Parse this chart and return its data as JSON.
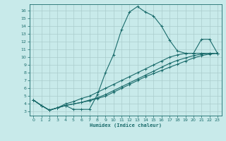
{
  "title": "",
  "xlabel": "Humidex (Indice chaleur)",
  "bg_color": "#c8eaea",
  "grid_color": "#aacccc",
  "line_color": "#1a6b6b",
  "xlim": [
    -0.5,
    23.5
  ],
  "ylim": [
    2.5,
    16.8
  ],
  "xticks": [
    0,
    1,
    2,
    3,
    4,
    5,
    6,
    7,
    8,
    9,
    10,
    11,
    12,
    13,
    14,
    15,
    16,
    17,
    18,
    19,
    20,
    21,
    22,
    23
  ],
  "yticks": [
    3,
    4,
    5,
    6,
    7,
    8,
    9,
    10,
    11,
    12,
    13,
    14,
    15,
    16
  ],
  "curves": [
    {
      "x": [
        0,
        1,
        2,
        3,
        4,
        5,
        6,
        7,
        8,
        9,
        10,
        11,
        12,
        13,
        14,
        15,
        16,
        17,
        18,
        19,
        20,
        21,
        22,
        23
      ],
      "y": [
        4.5,
        3.8,
        3.2,
        3.5,
        3.8,
        3.3,
        3.3,
        3.3,
        5.2,
        8.0,
        10.3,
        13.5,
        15.8,
        16.5,
        15.8,
        15.3,
        14.0,
        12.2,
        10.8,
        10.5,
        10.5,
        12.3,
        12.3,
        10.5
      ]
    },
    {
      "x": [
        0,
        1,
        2,
        3,
        4,
        5,
        6,
        7,
        8,
        9,
        10,
        11,
        12,
        13,
        14,
        15,
        16,
        17,
        18,
        19,
        20,
        21,
        22,
        23
      ],
      "y": [
        4.5,
        3.8,
        3.2,
        3.5,
        4.0,
        4.3,
        4.7,
        5.0,
        5.5,
        6.0,
        6.5,
        7.0,
        7.5,
        8.0,
        8.5,
        9.0,
        9.5,
        10.0,
        10.3,
        10.5,
        10.5,
        10.5,
        10.5,
        10.5
      ]
    },
    {
      "x": [
        0,
        1,
        2,
        3,
        4,
        5,
        6,
        7,
        8,
        9,
        10,
        11,
        12,
        13,
        14,
        15,
        16,
        17,
        18,
        19,
        20,
        21,
        22,
        23
      ],
      "y": [
        4.5,
        3.8,
        3.2,
        3.5,
        3.8,
        4.0,
        4.2,
        4.5,
        4.8,
        5.2,
        5.7,
        6.2,
        6.7,
        7.2,
        7.7,
        8.2,
        8.7,
        9.2,
        9.6,
        9.9,
        10.2,
        10.4,
        10.5,
        10.5
      ]
    },
    {
      "x": [
        0,
        1,
        2,
        3,
        4,
        5,
        6,
        7,
        8,
        9,
        10,
        11,
        12,
        13,
        14,
        15,
        16,
        17,
        18,
        19,
        20,
        21,
        22,
        23
      ],
      "y": [
        4.5,
        3.8,
        3.2,
        3.5,
        3.8,
        4.0,
        4.2,
        4.4,
        4.7,
        5.0,
        5.5,
        6.0,
        6.5,
        7.0,
        7.5,
        7.9,
        8.3,
        8.7,
        9.1,
        9.5,
        9.9,
        10.2,
        10.4,
        10.5
      ]
    }
  ]
}
